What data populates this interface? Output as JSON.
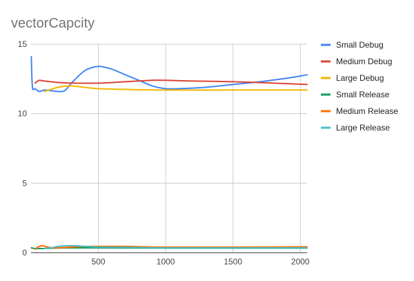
{
  "chart_data": {
    "type": "line",
    "title": "vectorCapcity",
    "xlabel": "",
    "ylabel": "",
    "xlim": [
      0,
      2050
    ],
    "ylim": [
      0,
      15
    ],
    "x_ticks": [
      500,
      1000,
      1500,
      2000
    ],
    "y_ticks": [
      0,
      5,
      10,
      15
    ],
    "grid": true,
    "legend_position": "right",
    "series": [
      {
        "name": "Small Debug",
        "color": "#4285f4",
        "points": [
          [
            2,
            14.1
          ],
          [
            10,
            11.9
          ],
          [
            30,
            11.8
          ],
          [
            60,
            11.6
          ],
          [
            100,
            11.7
          ],
          [
            150,
            11.65
          ],
          [
            200,
            11.6
          ],
          [
            250,
            11.65
          ],
          [
            300,
            12.2
          ],
          [
            400,
            13.1
          ],
          [
            500,
            13.4
          ],
          [
            600,
            13.2
          ],
          [
            700,
            12.8
          ],
          [
            800,
            12.4
          ],
          [
            900,
            12.0
          ],
          [
            1000,
            11.8
          ],
          [
            1100,
            11.8
          ],
          [
            1300,
            11.9
          ],
          [
            1500,
            12.1
          ],
          [
            1700,
            12.3
          ],
          [
            1900,
            12.55
          ],
          [
            2050,
            12.8
          ]
        ]
      },
      {
        "name": "Medium Debug",
        "color": "#db4437",
        "points": [
          [
            30,
            12.2
          ],
          [
            60,
            12.4
          ],
          [
            100,
            12.35
          ],
          [
            200,
            12.25
          ],
          [
            300,
            12.2
          ],
          [
            500,
            12.2
          ],
          [
            700,
            12.3
          ],
          [
            900,
            12.4
          ],
          [
            1000,
            12.4
          ],
          [
            1200,
            12.35
          ],
          [
            1500,
            12.3
          ],
          [
            1800,
            12.2
          ],
          [
            2050,
            12.1
          ]
        ]
      },
      {
        "name": "Large Debug",
        "color": "#f4b400",
        "points": [
          [
            100,
            11.6
          ],
          [
            150,
            11.75
          ],
          [
            200,
            11.9
          ],
          [
            280,
            12.0
          ],
          [
            350,
            11.95
          ],
          [
            500,
            11.8
          ],
          [
            700,
            11.75
          ],
          [
            1000,
            11.7
          ],
          [
            1500,
            11.7
          ],
          [
            2050,
            11.7
          ]
        ]
      },
      {
        "name": "Small Release",
        "color": "#0f9d58",
        "points": [
          [
            2,
            0.35
          ],
          [
            30,
            0.3
          ],
          [
            80,
            0.3
          ],
          [
            150,
            0.32
          ],
          [
            300,
            0.35
          ],
          [
            500,
            0.35
          ],
          [
            1000,
            0.33
          ],
          [
            1500,
            0.33
          ],
          [
            2050,
            0.33
          ]
        ]
      },
      {
        "name": "Medium Release",
        "color": "#ff6d01",
        "points": [
          [
            30,
            0.25
          ],
          [
            60,
            0.45
          ],
          [
            90,
            0.5
          ],
          [
            120,
            0.4
          ],
          [
            160,
            0.35
          ],
          [
            200,
            0.35
          ],
          [
            300,
            0.4
          ],
          [
            400,
            0.45
          ],
          [
            500,
            0.45
          ],
          [
            700,
            0.45
          ],
          [
            1000,
            0.4
          ],
          [
            1500,
            0.4
          ],
          [
            2050,
            0.42
          ]
        ]
      },
      {
        "name": "Large Release",
        "color": "#46bdc6",
        "points": [
          [
            100,
            0.3
          ],
          [
            150,
            0.35
          ],
          [
            200,
            0.45
          ],
          [
            270,
            0.5
          ],
          [
            330,
            0.5
          ],
          [
            400,
            0.45
          ],
          [
            500,
            0.4
          ],
          [
            700,
            0.38
          ],
          [
            1000,
            0.35
          ],
          [
            1500,
            0.35
          ],
          [
            2050,
            0.35
          ]
        ]
      }
    ]
  }
}
